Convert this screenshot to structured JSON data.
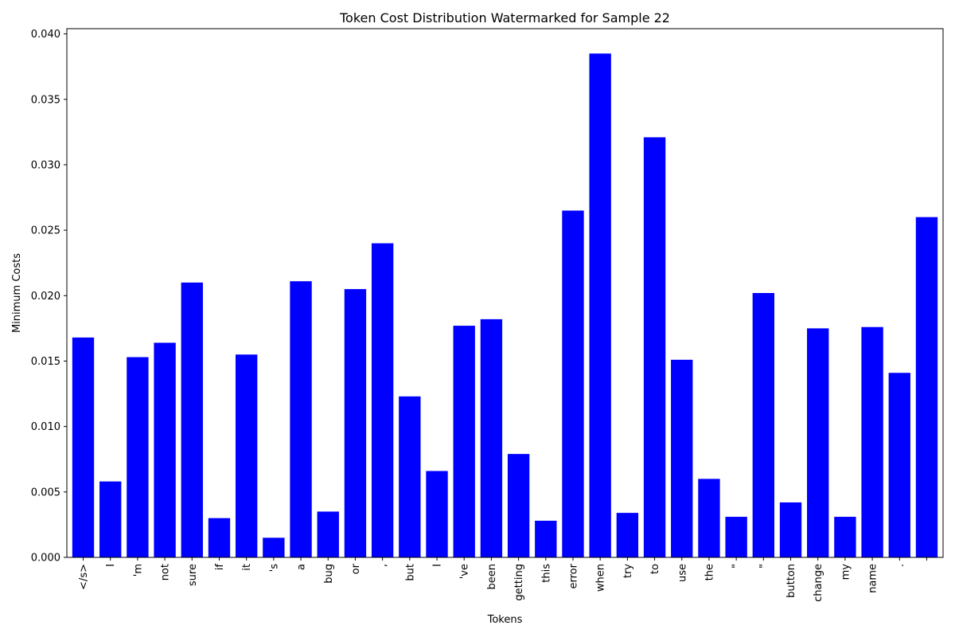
{
  "chart_data": {
    "type": "bar",
    "title": "Token Cost Distribution Watermarked for Sample 22",
    "xlabel": "Tokens",
    "ylabel": "Minimum Costs",
    "ylim": [
      0,
      0.0404
    ],
    "yticks": [
      "0.000",
      "0.005",
      "0.010",
      "0.015",
      "0.020",
      "0.025",
      "0.030",
      "0.035",
      "0.040"
    ],
    "ytick_values": [
      0,
      0.005,
      0.01,
      0.015,
      0.02,
      0.025,
      0.03,
      0.035,
      0.04
    ],
    "grid": false,
    "bar_color": "#0000ff",
    "categories": [
      "</s>",
      "I",
      "'m",
      "not",
      "sure",
      "if",
      "it",
      "'s",
      "a",
      "bug",
      "or",
      ",",
      "but",
      "I",
      "'ve",
      "been",
      "getting",
      "this",
      "error",
      "when",
      "try",
      "to",
      "use",
      "the",
      "\"",
      "\"",
      "button",
      "change",
      "my",
      "name",
      ".",
      ""
    ],
    "values": [
      0.0168,
      0.0058,
      0.0153,
      0.0164,
      0.021,
      0.003,
      0.0155,
      0.0015,
      0.0211,
      0.0035,
      0.0205,
      0.024,
      0.0123,
      0.0066,
      0.0177,
      0.0182,
      0.0079,
      0.0028,
      0.0265,
      0.0385,
      0.0034,
      0.0321,
      0.0151,
      0.006,
      0.0031,
      0.0202,
      0.0042,
      0.0175,
      0.0031,
      0.0176,
      0.0141,
      0.026
    ]
  }
}
